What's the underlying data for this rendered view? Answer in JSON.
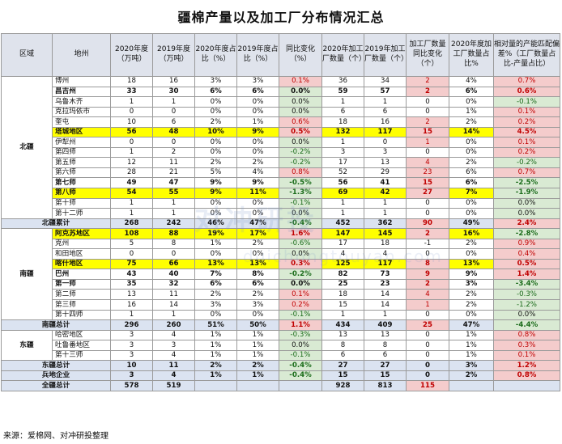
{
  "title": "疆棉产量以及加工厂分布情况汇总",
  "headers": [
    "区域",
    "地州",
    "2020年度（万吨）",
    "2019年度（万吨）",
    "2020年度占比（%）",
    "2019年度占比（%）",
    "同比变化（%）",
    "2020年加工厂数量（个）",
    "2019年加工厂数量（个）",
    "加工厂数量同比变化（个）",
    "2020年度加工厂数量占比%",
    "相对量的产能匹配偏差%（工厂数量占比-产量占比）"
  ],
  "rows": [
    {
      "region": "北疆",
      "name": "博州",
      "v": [
        "18",
        "16",
        "3%",
        "3%",
        "0.1%",
        "36",
        "34",
        "2",
        "4%",
        "0.7%"
      ],
      "type": "normal"
    },
    {
      "name": "昌吉州",
      "v": [
        "33",
        "30",
        "6%",
        "6%",
        "0.0%",
        "59",
        "57",
        "2",
        "6%",
        "0.6%"
      ],
      "type": "bold"
    },
    {
      "name": "乌鲁木齐",
      "v": [
        "1",
        "1",
        "0%",
        "0%",
        "0.0%",
        "1",
        "1",
        "0",
        "0%",
        "-0.1%"
      ],
      "type": "normal"
    },
    {
      "name": "克拉玛依市",
      "v": [
        "0",
        "0",
        "0%",
        "0%",
        "0.0%",
        "6",
        "6",
        "0",
        "1%",
        "0.1%"
      ],
      "type": "normal"
    },
    {
      "name": "奎屯",
      "v": [
        "10",
        "6",
        "2%",
        "1%",
        "0.6%",
        "18",
        "16",
        "2",
        "2%",
        "0.2%"
      ],
      "type": "normal"
    },
    {
      "name": "塔城地区",
      "v": [
        "56",
        "48",
        "10%",
        "9%",
        "0.5%",
        "132",
        "117",
        "15",
        "14%",
        "4.5%"
      ],
      "type": "yellow"
    },
    {
      "name": "伊犁州",
      "v": [
        "0",
        "0",
        "0%",
        "0%",
        "0.0%",
        "1",
        "0",
        "1",
        "0%",
        "0.1%"
      ],
      "type": "normal"
    },
    {
      "name": "第四师",
      "v": [
        "1",
        "2",
        "0%",
        "0%",
        "-0.2%",
        "3",
        "3",
        "0",
        "0%",
        "0.2%"
      ],
      "type": "normal"
    },
    {
      "name": "第五师",
      "v": [
        "12",
        "11",
        "2%",
        "2%",
        "-0.2%",
        "17",
        "13",
        "4",
        "2%",
        "-0.2%"
      ],
      "type": "normal"
    },
    {
      "name": "第六师",
      "v": [
        "28",
        "21",
        "5%",
        "4%",
        "0.8%",
        "52",
        "29",
        "23",
        "6%",
        "0.7%"
      ],
      "type": "normal"
    },
    {
      "name": "第七师",
      "v": [
        "49",
        "47",
        "9%",
        "9%",
        "-0.5%",
        "56",
        "41",
        "15",
        "6%",
        "-2.5%"
      ],
      "type": "bold"
    },
    {
      "name": "第八师",
      "v": [
        "54",
        "55",
        "9%",
        "11%",
        "-1.3%",
        "69",
        "42",
        "27",
        "7%",
        "-1.9%"
      ],
      "type": "yellow"
    },
    {
      "name": "第十师",
      "v": [
        "1",
        "1",
        "0%",
        "0%",
        "-0.1%",
        "1",
        "1",
        "0",
        "0%",
        "0.0%"
      ],
      "type": "normal"
    },
    {
      "name": "第十二师",
      "v": [
        "1",
        "1",
        "0%",
        "0%",
        "0.0%",
        "1",
        "1",
        "0",
        "0%",
        "0.0%"
      ],
      "type": "normal"
    },
    {
      "label": "北疆累计",
      "v": [
        "268",
        "242",
        "46%",
        "47%",
        "-0.4%",
        "452",
        "362",
        "90",
        "49%",
        "2.4%"
      ],
      "type": "total"
    },
    {
      "region": "南疆",
      "name": "阿克苏地区",
      "v": [
        "108",
        "88",
        "19%",
        "17%",
        "1.6%",
        "147",
        "145",
        "2",
        "16%",
        "-2.8%"
      ],
      "type": "yellow"
    },
    {
      "name": "克州",
      "v": [
        "5",
        "8",
        "1%",
        "2%",
        "-0.6%",
        "17",
        "18",
        "-1",
        "2%",
        "0.9%"
      ],
      "type": "normal"
    },
    {
      "name": "和田地区",
      "v": [
        "0",
        "0",
        "0%",
        "0%",
        "0.0%",
        "4",
        "4",
        "0",
        "0%",
        "0.4%"
      ],
      "type": "normal"
    },
    {
      "name": "喀什地区",
      "v": [
        "75",
        "66",
        "13%",
        "13%",
        "0.3%",
        "125",
        "117",
        "8",
        "13%",
        "0.5%"
      ],
      "type": "yellow"
    },
    {
      "name": "巴州",
      "v": [
        "43",
        "40",
        "7%",
        "8%",
        "-0.2%",
        "82",
        "73",
        "9",
        "9%",
        "1.4%"
      ],
      "type": "bold"
    },
    {
      "name": "第一师",
      "v": [
        "35",
        "32",
        "6%",
        "6%",
        "0.0%",
        "25",
        "23",
        "2",
        "3%",
        "-3.4%"
      ],
      "type": "bold"
    },
    {
      "name": "第二师",
      "v": [
        "13",
        "11",
        "2%",
        "2%",
        "0.1%",
        "18",
        "14",
        "4",
        "2%",
        "-0.3%"
      ],
      "type": "normal"
    },
    {
      "name": "第三师",
      "v": [
        "16",
        "14",
        "3%",
        "3%",
        "0.2%",
        "15",
        "14",
        "1",
        "2%",
        "-1.2%"
      ],
      "type": "normal"
    },
    {
      "name": "第十四师",
      "v": [
        "1",
        "1",
        "0%",
        "0%",
        "-0.1%",
        "1",
        "1",
        "0",
        "0%",
        "0.0%"
      ],
      "type": "normal"
    },
    {
      "label": "南疆总计",
      "v": [
        "296",
        "260",
        "51%",
        "50%",
        "1.1%",
        "434",
        "409",
        "25",
        "47%",
        "-4.4%"
      ],
      "type": "total"
    },
    {
      "region": "东疆",
      "name": "哈密地区",
      "v": [
        "3",
        "4",
        "1%",
        "1%",
        "-0.3%",
        "13",
        "13",
        "0",
        "1%",
        "0.8%"
      ],
      "type": "normal"
    },
    {
      "name": "吐鲁番地区",
      "v": [
        "3",
        "3",
        "1%",
        "1%",
        "0.0%",
        "8",
        "8",
        "0",
        "1%",
        "0.3%"
      ],
      "type": "normal"
    },
    {
      "name": "第十三师",
      "v": [
        "3",
        "4",
        "1%",
        "1%",
        "-0.1%",
        "6",
        "6",
        "0",
        "1%",
        "0.1%"
      ],
      "type": "normal"
    },
    {
      "label": "东疆总计",
      "v": [
        "10",
        "11",
        "2%",
        "2%",
        "-0.4%",
        "27",
        "27",
        "0",
        "3%",
        "1.2%"
      ],
      "type": "total"
    },
    {
      "label": "兵地企业",
      "v": [
        "3",
        "4",
        "1%",
        "1%",
        "-0.4%",
        "15",
        "15",
        "0",
        "2%",
        "0.8%"
      ],
      "type": "total"
    },
    {
      "label": "全疆总计",
      "v": [
        "578",
        "519",
        "",
        "",
        "",
        "928",
        "813",
        "115",
        "",
        ""
      ],
      "type": "total"
    }
  ],
  "source": "来源：爱棉网、对冲研投整理",
  "watermark": "对冲研投",
  "watermark_sub": "duichongtouyan.com",
  "colors": {
    "header_bg": "#dfe3ec",
    "highlight": "#ffff00",
    "total_bg": "#dbe3f1",
    "positive_bg": "#f4cccc",
    "negative_bg": "#d9ead3"
  }
}
